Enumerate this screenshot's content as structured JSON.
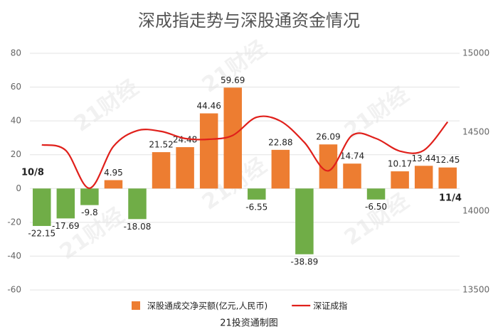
{
  "chart_data": {
    "type": "bar_line",
    "title": "深成指走势与深股通资金情况",
    "watermark": "21财经",
    "footer": "21投资通制图",
    "annotations": [
      "10/8",
      "11/4"
    ],
    "categories": [
      null,
      null,
      null,
      null,
      null,
      null,
      null,
      null,
      null,
      null,
      null,
      null,
      null,
      null,
      null,
      null,
      null,
      null
    ],
    "series": [
      {
        "name": "深股通成交净买额(亿元,人民币)",
        "type": "bar",
        "color": "#ED7D31",
        "negative_color": "#70AD47",
        "values": [
          -22.15,
          -17.69,
          -9.8,
          4.95,
          -18.08,
          21.52,
          24.48,
          44.46,
          59.69,
          -6.55,
          22.88,
          -38.89,
          26.09,
          14.74,
          -6.5,
          10.17,
          13.44,
          12.45
        ],
        "value_labels": [
          "-22.15",
          "-17.69",
          "-9.8",
          "4.95",
          "-18.08",
          "21.52",
          "24.48",
          "44.46",
          "59.69",
          "-6.55",
          "22.88",
          "-38.89",
          "26.09",
          "14.74",
          "-6.50",
          "10.17",
          "13.44",
          "12.45"
        ]
      },
      {
        "name": "深证成指",
        "type": "line",
        "color": "#E0201B",
        "axis": "y2",
        "values": [
          14420,
          14385,
          14145,
          14410,
          14510,
          14505,
          14460,
          14455,
          14480,
          14595,
          14570,
          14435,
          14255,
          14480,
          14460,
          14380,
          14385,
          14565
        ]
      }
    ],
    "ylim": [
      -60,
      80
    ],
    "yticks": [
      -60,
      -40,
      -20,
      0,
      20,
      40,
      60,
      80
    ],
    "y2lim": [
      13500,
      15000
    ],
    "y2ticks": [
      13500,
      14000,
      14500,
      15000
    ],
    "grid": true,
    "legend": "bottom"
  }
}
